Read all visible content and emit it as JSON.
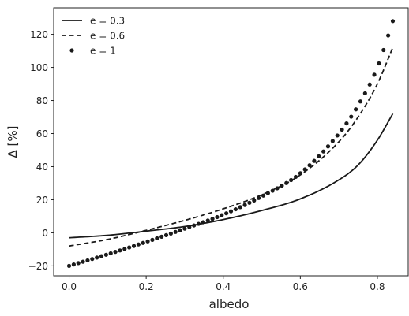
{
  "chart_data": {
    "type": "line",
    "xlabel": "albedo",
    "ylabel": "Δ [%]",
    "xlim": [
      -0.04,
      0.88
    ],
    "ylim": [
      -26,
      136
    ],
    "x_ticks": [
      0.0,
      0.2,
      0.4,
      0.6,
      0.8
    ],
    "x_tick_labels": [
      "0.0",
      "0.2",
      "0.4",
      "0.6",
      "0.8"
    ],
    "y_ticks": [
      -20,
      0,
      20,
      40,
      60,
      80,
      100,
      120
    ],
    "y_tick_labels": [
      "−20",
      "0",
      "20",
      "40",
      "60",
      "80",
      "100",
      "120"
    ],
    "grid": false,
    "legend_position": "top-left",
    "series": [
      {
        "name": "e = 0.3",
        "style": "solid",
        "color": "#1a1a1a",
        "x": [
          0.0,
          0.1,
          0.2,
          0.3,
          0.4,
          0.5,
          0.6,
          0.7,
          0.75,
          0.8,
          0.84
        ],
        "y": [
          -3.0,
          -1.5,
          1.0,
          3.8,
          8.0,
          13.5,
          20.5,
          32.0,
          41.0,
          56.0,
          72.0
        ]
      },
      {
        "name": "e = 0.6",
        "style": "dashed",
        "color": "#1a1a1a",
        "x": [
          0.0,
          0.1,
          0.2,
          0.3,
          0.4,
          0.5,
          0.6,
          0.7,
          0.75,
          0.8,
          0.84
        ],
        "y": [
          -8.0,
          -4.0,
          1.5,
          7.5,
          14.5,
          23.0,
          35.0,
          55.0,
          70.0,
          90.0,
          112.0
        ]
      },
      {
        "name": "e = 1",
        "style": "dotted-markers",
        "color": "#1a1a1a",
        "x": [
          0.0,
          0.1,
          0.2,
          0.3,
          0.4,
          0.5,
          0.6,
          0.7,
          0.75,
          0.8,
          0.84
        ],
        "y": [
          -20.0,
          -13.0,
          -5.5,
          2.5,
          11.0,
          22.0,
          36.0,
          60.0,
          77.0,
          100.0,
          128.0
        ]
      }
    ]
  }
}
